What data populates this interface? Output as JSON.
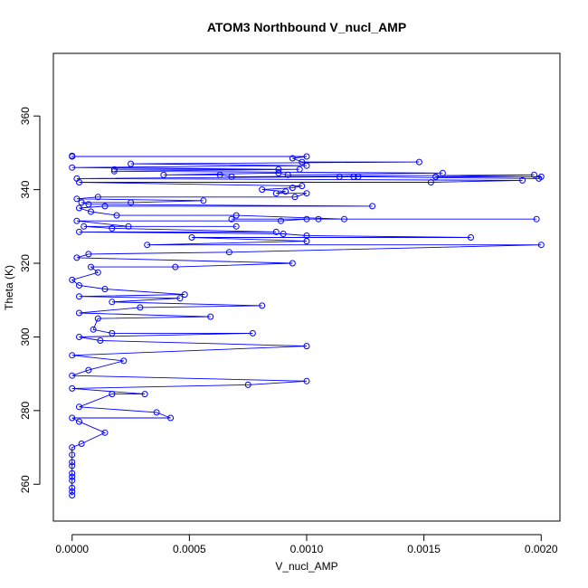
{
  "chart_data": {
    "type": "line",
    "title": "ATOM3 Northbound V_nucl_AMP",
    "xlabel": "V_nucl_AMP",
    "ylabel": "Theta (K)",
    "xlim": [
      -8e-05,
      0.00208
    ],
    "ylim": [
      250,
      377
    ],
    "xticks": [
      0,
      0.0005,
      0.001,
      0.0015,
      0.002
    ],
    "xtick_labels": [
      "0.0000",
      "0.0005",
      "0.0010",
      "0.0015",
      "0.0020"
    ],
    "yticks": [
      260,
      280,
      300,
      320,
      340,
      360
    ],
    "ytick_labels": [
      "260",
      "280",
      "300",
      "320",
      "340",
      "360"
    ],
    "grid": false,
    "markers": "open-circle",
    "series_color": "#0000ff",
    "series": [
      {
        "points": [
          [
            0,
            257
          ],
          [
            0,
            258
          ],
          [
            0,
            259
          ],
          [
            0,
            261
          ],
          [
            0,
            262
          ],
          [
            0,
            263
          ],
          [
            0,
            265
          ],
          [
            0,
            266
          ],
          [
            0,
            268
          ],
          [
            0,
            270
          ],
          [
            4e-05,
            271
          ],
          [
            0.00014,
            274
          ],
          [
            3e-05,
            277
          ],
          [
            0,
            278
          ],
          [
            0.00042,
            278
          ],
          [
            0.00036,
            279.5
          ],
          [
            3e-05,
            281
          ],
          [
            0.00017,
            284.5
          ],
          [
            0.00031,
            284.5
          ],
          [
            0,
            286
          ],
          [
            0.00075,
            287
          ],
          [
            0.001,
            288
          ],
          [
            0,
            289.5
          ],
          [
            7e-05,
            291
          ],
          [
            0.00022,
            293.5
          ],
          [
            0,
            295
          ],
          [
            0.001,
            297.5
          ],
          [
            0.00012,
            299
          ],
          [
            3e-05,
            300
          ],
          [
            0.00077,
            301
          ],
          [
            0.00017,
            301
          ],
          [
            9e-05,
            302
          ],
          [
            0.00011,
            305
          ],
          [
            0.00059,
            305.5
          ],
          [
            3e-05,
            306.5
          ],
          [
            0.00029,
            308
          ],
          [
            0.00081,
            308.5
          ],
          [
            0.00017,
            309.5
          ],
          [
            0.00046,
            310.5
          ],
          [
            3e-05,
            311
          ],
          [
            0.00048,
            311.5
          ],
          [
            0.00014,
            313
          ],
          [
            3e-05,
            314
          ],
          [
            0,
            315.5
          ],
          [
            0.00011,
            317.5
          ],
          [
            8e-05,
            319
          ],
          [
            0.00044,
            319
          ],
          [
            0.00094,
            320
          ],
          [
            2e-05,
            321.5
          ],
          [
            7e-05,
            322.5
          ],
          [
            0.00067,
            323
          ],
          [
            0.002,
            325
          ],
          [
            0.00032,
            325
          ],
          [
            0.001,
            326
          ],
          [
            0.00051,
            327
          ],
          [
            0.0017,
            327
          ],
          [
            0.001,
            327.5
          ],
          [
            0.0009,
            328
          ],
          [
            3e-05,
            328.5
          ],
          [
            0.00087,
            328.5
          ],
          [
            0.00017,
            329.5
          ],
          [
            5e-05,
            330
          ],
          [
            0.0007,
            330
          ],
          [
            0.00024,
            330
          ],
          [
            2e-05,
            331.5
          ],
          [
            0.00089,
            331.5
          ],
          [
            0.001,
            332
          ],
          [
            0.00068,
            332
          ],
          [
            0.00105,
            332
          ],
          [
            0.00198,
            332
          ],
          [
            0.00116,
            332
          ],
          [
            0.0007,
            333
          ],
          [
            0.00019,
            333
          ],
          [
            8e-05,
            334
          ],
          [
            3e-05,
            335
          ],
          [
            0.00014,
            335.5
          ],
          [
            0.00128,
            335.5
          ],
          [
            7e-05,
            336
          ],
          [
            4e-05,
            336.5
          ],
          [
            0.00025,
            336.5
          ],
          [
            0.00056,
            337
          ],
          [
            2e-05,
            337.5
          ],
          [
            0.00011,
            338
          ],
          [
            0.00095,
            338
          ],
          [
            0.001,
            339
          ],
          [
            0.00087,
            339
          ],
          [
            0.00091,
            339.5
          ],
          [
            0.00081,
            340
          ],
          [
            0.00094,
            340.5
          ],
          [
            0.00098,
            341
          ],
          [
            3e-05,
            342
          ],
          [
            0.00153,
            342
          ],
          [
            0.00192,
            342.5
          ],
          [
            2e-05,
            343
          ],
          [
            0.00114,
            343.5
          ],
          [
            0.0012,
            343.5
          ],
          [
            0.00122,
            343.5
          ],
          [
            0.00199,
            343
          ],
          [
            0.002,
            343.5
          ],
          [
            0.00155,
            343.5
          ],
          [
            0.00197,
            344
          ],
          [
            0.00068,
            343.5
          ],
          [
            0.00063,
            344
          ],
          [
            0.00039,
            344
          ],
          [
            0.00088,
            344.5
          ],
          [
            0.00092,
            344
          ],
          [
            0.00158,
            344.5
          ],
          [
            0.00018,
            345
          ],
          [
            0.00097,
            345.5
          ],
          [
            0.00018,
            345.5
          ],
          [
            0.00088,
            345.5
          ],
          [
            0,
            346
          ],
          [
            0.001,
            346.5
          ],
          [
            0.00025,
            347
          ],
          [
            0.00148,
            347.5
          ],
          [
            0.00098,
            347.5
          ],
          [
            0.00094,
            348.5
          ],
          [
            0.001,
            349
          ],
          [
            0,
            349
          ],
          [
            0,
            349.2
          ]
        ]
      }
    ]
  }
}
